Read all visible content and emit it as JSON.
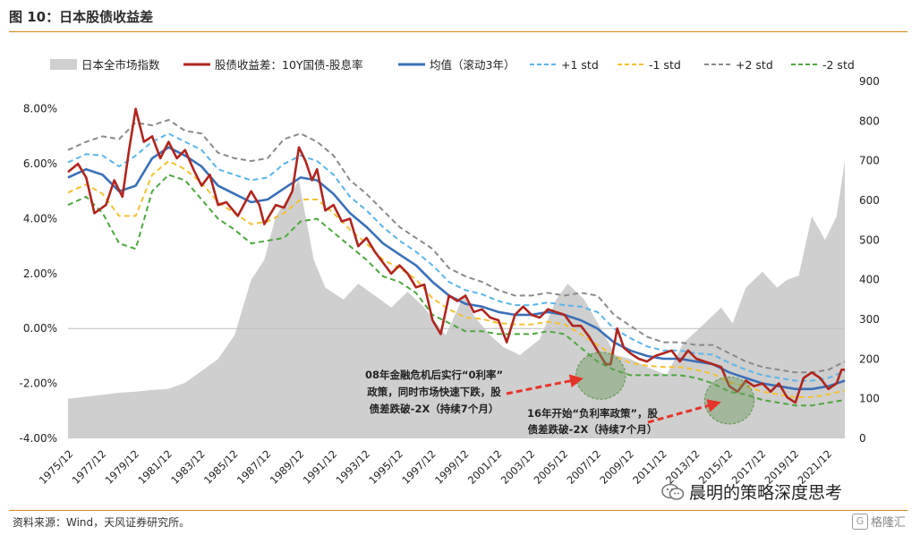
{
  "figure": {
    "title": "图 10：日本股债收益差",
    "source": "资料来源：Wind，天风证券研究所。",
    "watermark": "晨明的策略深度思考",
    "brand": "格隆汇",
    "brand_glyph": "G"
  },
  "colors": {
    "area": "#cfcfcf",
    "spread": "#b0251f",
    "mean": "#3a70b8",
    "plus1": "#5bb5ea",
    "minus1": "#f2c234",
    "plus2": "#8a8a8a",
    "minus2": "#4ea73f",
    "accent": "#d0871a",
    "arrow": "#e5352b",
    "circle": "#6a9a5a"
  },
  "chart_data": {
    "type": "line",
    "title": "",
    "xlabel": "",
    "ylabel": "",
    "x_ticks": [
      "1975/12",
      "1977/12",
      "1979/12",
      "1981/12",
      "1983/12",
      "1985/12",
      "1987/12",
      "1989/12",
      "1991/12",
      "1993/12",
      "1995/12",
      "1997/12",
      "1999/12",
      "2001/12",
      "2003/12",
      "2005/12",
      "2007/12",
      "2009/12",
      "2011/12",
      "2013/12",
      "2015/12",
      "2017/12",
      "2019/12",
      "2021/12"
    ],
    "x_range": [
      1975.9,
      2023.0
    ],
    "y_left": {
      "range": [
        -4,
        9
      ],
      "ticks": [
        "8.00%",
        "6.00%",
        "4.00%",
        "2.00%",
        "0.00%",
        "-2.00%",
        "-4.00%"
      ],
      "tick_values": [
        8,
        6,
        4,
        2,
        0,
        -2,
        -4
      ]
    },
    "y_right": {
      "range": [
        0,
        900
      ],
      "ticks": [
        "900",
        "800",
        "700",
        "600",
        "500",
        "400",
        "300",
        "200",
        "100",
        "0"
      ],
      "tick_values": [
        900,
        800,
        700,
        600,
        500,
        400,
        300,
        200,
        100,
        0
      ]
    },
    "legend": {
      "placement": "top",
      "items": [
        {
          "key": "area",
          "label": "日本全市场指数",
          "style": "area"
        },
        {
          "key": "spread",
          "label": "股债收益差：10Y国债-股息率",
          "style": "solid"
        },
        {
          "key": "mean",
          "label": "均值（滚动3年）",
          "style": "solid"
        },
        {
          "key": "plus1",
          "label": "+1 std",
          "style": "dashed"
        },
        {
          "key": "minus1",
          "label": "-1 std",
          "style": "dashed"
        },
        {
          "key": "plus2",
          "label": "+2 std",
          "style": "dashed"
        },
        {
          "key": "minus2",
          "label": "-2 std",
          "style": "dashed"
        }
      ]
    },
    "index_series": {
      "name": "日本全市场指数",
      "axis": "right",
      "x": [
        1975.9,
        1977,
        1978,
        1979,
        1980,
        1981,
        1982,
        1983,
        1984,
        1985,
        1986,
        1987,
        1987.8,
        1988.5,
        1989.9,
        1990.8,
        1991.5,
        1992.6,
        1993.5,
        1994.5,
        1995.5,
        1996.5,
        1997.5,
        1998.8,
        1999.9,
        2000.5,
        2001.5,
        2002.3,
        2003.3,
        2004.5,
        2005.5,
        2006.2,
        2007.2,
        2008.3,
        2009.1,
        2010,
        2011,
        2012.2,
        2013.2,
        2014,
        2015.5,
        2016.2,
        2017,
        2018,
        2018.9,
        2019.5,
        2020.2,
        2021,
        2021.8,
        2022.5,
        2023.0
      ],
      "values": [
        100,
        105,
        110,
        115,
        118,
        122,
        125,
        140,
        170,
        200,
        260,
        400,
        450,
        560,
        650,
        450,
        380,
        350,
        390,
        360,
        330,
        370,
        330,
        260,
        360,
        310,
        260,
        230,
        210,
        250,
        350,
        390,
        350,
        270,
        210,
        200,
        180,
        160,
        240,
        270,
        330,
        290,
        380,
        420,
        380,
        400,
        410,
        560,
        500,
        560,
        700
      ]
    },
    "spread_series": {
      "name": "股债收益差：10Y国债-股息率",
      "axis": "left",
      "x": [
        1975.9,
        1976.5,
        1977,
        1977.5,
        1978.2,
        1978.7,
        1979.2,
        1979.6,
        1980,
        1980.5,
        1981,
        1981.5,
        1982,
        1982.5,
        1983,
        1983.5,
        1984,
        1984.5,
        1985,
        1985.5,
        1986.2,
        1987,
        1987.5,
        1987.8,
        1988.5,
        1989,
        1989.5,
        1989.9,
        1990.3,
        1990.7,
        1991,
        1991.5,
        1992,
        1992.5,
        1993,
        1993.5,
        1994,
        1994.5,
        1995,
        1995.5,
        1996,
        1996.5,
        1997,
        1997.5,
        1998,
        1998.5,
        1999,
        1999.5,
        2000,
        2000.5,
        2001,
        2001.5,
        2002,
        2002.5,
        2003,
        2003.5,
        2004,
        2004.5,
        2005,
        2005.5,
        2006,
        2006.5,
        2007,
        2007.5,
        2008,
        2008.5,
        2008.8,
        2009.2,
        2009.6,
        2010,
        2010.5,
        2011,
        2011.5,
        2012,
        2012.5,
        2013,
        2013.5,
        2014,
        2014.5,
        2015,
        2015.5,
        2016,
        2016.5,
        2017,
        2017.5,
        2018,
        2018.5,
        2019,
        2019.5,
        2020,
        2020.5,
        2021,
        2021.5,
        2022,
        2022.5,
        2022.8,
        2023.0
      ],
      "values": [
        5.7,
        6.0,
        5.5,
        4.2,
        4.5,
        5.4,
        4.8,
        6.5,
        8.0,
        6.8,
        7.0,
        6.2,
        6.8,
        6.2,
        6.5,
        5.8,
        5.2,
        5.6,
        4.5,
        4.6,
        4.1,
        5.0,
        4.5,
        3.8,
        4.5,
        4.4,
        5.0,
        6.6,
        6.1,
        5.4,
        5.8,
        4.3,
        4.5,
        3.9,
        4.0,
        3.0,
        3.3,
        2.8,
        2.4,
        2.0,
        2.3,
        2.0,
        1.5,
        1.6,
        0.3,
        -0.2,
        1.2,
        1.0,
        1.2,
        0.6,
        0.7,
        0.4,
        0.3,
        -0.5,
        0.5,
        0.8,
        0.5,
        0.4,
        0.7,
        0.6,
        0.5,
        0.1,
        0.1,
        -0.3,
        -0.8,
        -1.3,
        -1.3,
        0.0,
        -0.7,
        -0.9,
        -1.1,
        -1.2,
        -1.0,
        -0.9,
        -0.8,
        -1.2,
        -0.8,
        -1.1,
        -1.2,
        -1.3,
        -1.4,
        -2.1,
        -2.3,
        -1.9,
        -2.1,
        -2.0,
        -2.3,
        -2.0,
        -2.5,
        -2.7,
        -1.8,
        -1.6,
        -1.8,
        -2.2,
        -2.0,
        -1.5,
        -1.5
      ]
    },
    "mean_series": {
      "name": "均值（滚动3年）",
      "axis": "left",
      "x": [
        1975.9,
        1977,
        1978,
        1979,
        1980,
        1981,
        1982,
        1983,
        1984,
        1985,
        1986,
        1987,
        1988,
        1989,
        1990,
        1991,
        1992,
        1993,
        1994,
        1995,
        1996,
        1997,
        1998,
        1999,
        2000,
        2001,
        2002,
        2003,
        2004,
        2005,
        2006,
        2007,
        2008,
        2009,
        2010,
        2011,
        2012,
        2013,
        2014,
        2015,
        2016,
        2017,
        2018,
        2019,
        2020,
        2021,
        2022,
        2023.0
      ],
      "values": [
        5.5,
        5.8,
        5.6,
        5.0,
        5.2,
        6.2,
        6.6,
        6.3,
        5.9,
        5.2,
        4.9,
        4.6,
        4.7,
        5.1,
        5.5,
        5.4,
        4.9,
        4.2,
        3.7,
        3.1,
        2.7,
        2.3,
        1.7,
        1.2,
        0.9,
        0.8,
        0.6,
        0.5,
        0.5,
        0.6,
        0.5,
        0.3,
        0.0,
        -0.5,
        -0.8,
        -1.0,
        -1.1,
        -1.1,
        -1.2,
        -1.3,
        -1.6,
        -1.8,
        -2.0,
        -2.1,
        -2.2,
        -2.2,
        -2.1,
        -1.9
      ]
    },
    "std_bands": {
      "plus1_offset": [
        0.55,
        0.55,
        0.7,
        0.9,
        1.1,
        0.6,
        0.5,
        0.5,
        0.6,
        0.6,
        0.7,
        0.8,
        0.8,
        0.9,
        0.8,
        0.7,
        0.7,
        0.6,
        0.6,
        0.6,
        0.5,
        0.5,
        0.6,
        0.5,
        0.5,
        0.45,
        0.4,
        0.35,
        0.35,
        0.35,
        0.35,
        0.5,
        0.6,
        0.5,
        0.45,
        0.35,
        0.3,
        0.3,
        0.3,
        0.35,
        0.35,
        0.3,
        0.3,
        0.3,
        0.3,
        0.3,
        0.3,
        0.35
      ],
      "plus2_offset": [
        1.0,
        1.0,
        1.4,
        1.9,
        2.3,
        1.2,
        1.0,
        0.9,
        1.2,
        1.2,
        1.3,
        1.5,
        1.5,
        1.8,
        1.6,
        1.4,
        1.4,
        1.2,
        1.2,
        1.2,
        1.0,
        1.0,
        1.2,
        1.0,
        1.0,
        0.9,
        0.8,
        0.7,
        0.7,
        0.7,
        0.7,
        1.0,
        1.2,
        1.0,
        0.9,
        0.7,
        0.6,
        0.6,
        0.6,
        0.7,
        0.7,
        0.6,
        0.6,
        0.6,
        0.6,
        0.6,
        0.6,
        0.7
      ]
    },
    "annotations": [
      {
        "text_lines": [
          "08年金融危机后实行“0利率”",
          "政策，同时市场快速下跌，股",
          "债差跌破-2X（持续7个月）"
        ]
      },
      {
        "text_lines": [
          "16年开始“负利率政策”，股",
          "债差跌破-2X（持续7个月）"
        ]
      }
    ],
    "highlights": [
      {
        "x": 2008.2,
        "y": -1.72,
        "r": 1.5
      },
      {
        "x": 2016.0,
        "y": -2.62,
        "r": 1.5
      }
    ],
    "grid": false
  }
}
